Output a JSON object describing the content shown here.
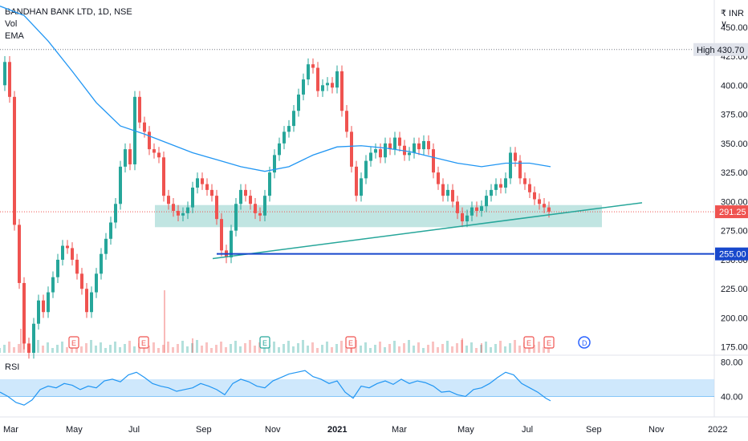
{
  "header": {
    "symbol": "BANDHAN BANK LTD, 1D, NSE",
    "indicators": [
      "Vol",
      "EMA"
    ]
  },
  "currency_label": "₹ INR ∨",
  "rsi_label": "RSI",
  "chart_data": {
    "type": "line",
    "title": "BANDHAN BANK LTD, 1D, NSE",
    "price_axis": {
      "ticks": [
        450.0,
        425.0,
        400.0,
        375.0,
        350.0,
        325.0,
        300.0,
        275.0,
        250.0,
        225.0,
        200.0,
        175.0
      ],
      "range": [
        170,
        465
      ]
    },
    "time_axis": {
      "labels": [
        "Mar",
        "May",
        "Jul",
        "Sep",
        "Nov",
        "2021",
        "Mar",
        "May",
        "Jul",
        "Sep",
        "Nov",
        "2022"
      ]
    },
    "price_series": {
      "name": "Close",
      "color_up": "#26a69a",
      "color_down": "#ef5350",
      "points": [
        [
          0,
          400
        ],
        [
          6,
          420
        ],
        [
          12,
          390
        ],
        [
          18,
          280
        ],
        [
          24,
          230
        ],
        [
          30,
          178
        ],
        [
          36,
          170
        ],
        [
          42,
          195
        ],
        [
          48,
          215
        ],
        [
          54,
          205
        ],
        [
          60,
          222
        ],
        [
          66,
          235
        ],
        [
          72,
          250
        ],
        [
          78,
          262
        ],
        [
          84,
          260
        ],
        [
          90,
          250
        ],
        [
          96,
          238
        ],
        [
          102,
          225
        ],
        [
          108,
          205
        ],
        [
          114,
          222
        ],
        [
          120,
          238
        ],
        [
          126,
          255
        ],
        [
          132,
          268
        ],
        [
          138,
          282
        ],
        [
          144,
          298
        ],
        [
          150,
          330
        ],
        [
          156,
          345
        ],
        [
          162,
          332
        ],
        [
          168,
          390
        ],
        [
          174,
          368
        ],
        [
          180,
          360
        ],
        [
          186,
          345
        ],
        [
          192,
          342
        ],
        [
          198,
          338
        ],
        [
          204,
          305
        ],
        [
          210,
          298
        ],
        [
          216,
          292
        ],
        [
          222,
          288
        ],
        [
          228,
          290
        ],
        [
          234,
          295
        ],
        [
          240,
          312
        ],
        [
          246,
          320
        ],
        [
          252,
          315
        ],
        [
          258,
          310
        ],
        [
          264,
          305
        ],
        [
          270,
          285
        ],
        [
          276,
          258
        ],
        [
          282,
          252
        ],
        [
          288,
          275
        ],
        [
          294,
          298
        ],
        [
          300,
          310
        ],
        [
          306,
          305
        ],
        [
          312,
          298
        ],
        [
          318,
          290
        ],
        [
          324,
          288
        ],
        [
          330,
          305
        ],
        [
          336,
          325
        ],
        [
          342,
          340
        ],
        [
          348,
          350
        ],
        [
          354,
          360
        ],
        [
          360,
          365
        ],
        [
          366,
          378
        ],
        [
          372,
          392
        ],
        [
          378,
          405
        ],
        [
          384,
          418
        ],
        [
          390,
          415
        ],
        [
          396,
          395
        ],
        [
          402,
          400
        ],
        [
          408,
          402
        ],
        [
          414,
          398
        ],
        [
          420,
          412
        ],
        [
          426,
          378
        ],
        [
          432,
          360
        ],
        [
          438,
          330
        ],
        [
          444,
          305
        ],
        [
          450,
          320
        ],
        [
          456,
          335
        ],
        [
          462,
          342
        ],
        [
          468,
          345
        ],
        [
          474,
          338
        ],
        [
          480,
          350
        ],
        [
          486,
          345
        ],
        [
          492,
          355
        ],
        [
          498,
          348
        ],
        [
          504,
          340
        ],
        [
          510,
          342
        ],
        [
          516,
          350
        ],
        [
          522,
          345
        ],
        [
          528,
          352
        ],
        [
          534,
          345
        ],
        [
          540,
          325
        ],
        [
          546,
          315
        ],
        [
          552,
          305
        ],
        [
          558,
          310
        ],
        [
          564,
          300
        ],
        [
          570,
          290
        ],
        [
          576,
          283
        ],
        [
          582,
          288
        ],
        [
          588,
          295
        ],
        [
          594,
          292
        ],
        [
          600,
          296
        ],
        [
          606,
          305
        ],
        [
          612,
          310
        ],
        [
          618,
          315
        ],
        [
          624,
          312
        ],
        [
          630,
          320
        ],
        [
          636,
          342
        ],
        [
          642,
          335
        ],
        [
          648,
          320
        ],
        [
          654,
          315
        ],
        [
          660,
          308
        ],
        [
          666,
          302
        ],
        [
          672,
          298
        ],
        [
          678,
          295
        ],
        [
          684,
          291.25
        ]
      ]
    },
    "ema_series": {
      "name": "EMA",
      "color": "#2196f3",
      "points": [
        [
          0,
          468
        ],
        [
          30,
          460
        ],
        [
          60,
          438
        ],
        [
          90,
          412
        ],
        [
          120,
          385
        ],
        [
          150,
          365
        ],
        [
          180,
          358
        ],
        [
          210,
          350
        ],
        [
          240,
          342
        ],
        [
          270,
          336
        ],
        [
          300,
          330
        ],
        [
          330,
          326
        ],
        [
          360,
          330
        ],
        [
          390,
          340
        ],
        [
          420,
          347
        ],
        [
          450,
          348
        ],
        [
          480,
          346
        ],
        [
          510,
          343
        ],
        [
          540,
          338
        ],
        [
          570,
          333
        ],
        [
          600,
          330
        ],
        [
          630,
          333
        ],
        [
          660,
          333
        ],
        [
          686,
          330
        ]
      ]
    },
    "volume": {
      "name": "Vol",
      "up_color": "#26a69a",
      "down_color": "#ef5350",
      "spikes": [
        [
          26,
          195
        ],
        [
          205,
          235
        ],
        [
          240,
          185
        ],
        [
          438,
          180
        ],
        [
          576,
          185
        ],
        [
          600,
          180
        ]
      ]
    },
    "support_zone": {
      "low": 278,
      "high": 297,
      "color": "#b2dfdb"
    },
    "trendline": {
      "from": [
        265,
        251
      ],
      "to": [
        800,
        299
      ],
      "color": "#26a69a"
    },
    "horizontal_line": {
      "value": 255.0,
      "color": "#1848cc"
    },
    "rsi": {
      "ticks": [
        80.0,
        40.0
      ],
      "band": [
        40,
        60
      ],
      "range": [
        20,
        85
      ],
      "color": "#2196f3",
      "points": [
        [
          0,
          45
        ],
        [
          10,
          40
        ],
        [
          20,
          33
        ],
        [
          30,
          30
        ],
        [
          40,
          36
        ],
        [
          50,
          48
        ],
        [
          60,
          52
        ],
        [
          70,
          50
        ],
        [
          80,
          55
        ],
        [
          90,
          53
        ],
        [
          100,
          48
        ],
        [
          110,
          52
        ],
        [
          120,
          50
        ],
        [
          130,
          58
        ],
        [
          140,
          60
        ],
        [
          150,
          57
        ],
        [
          160,
          65
        ],
        [
          170,
          68
        ],
        [
          180,
          62
        ],
        [
          190,
          55
        ],
        [
          200,
          52
        ],
        [
          210,
          50
        ],
        [
          220,
          46
        ],
        [
          230,
          48
        ],
        [
          240,
          50
        ],
        [
          250,
          55
        ],
        [
          260,
          52
        ],
        [
          270,
          48
        ],
        [
          280,
          42
        ],
        [
          290,
          55
        ],
        [
          300,
          60
        ],
        [
          310,
          57
        ],
        [
          320,
          52
        ],
        [
          330,
          50
        ],
        [
          340,
          58
        ],
        [
          350,
          62
        ],
        [
          360,
          66
        ],
        [
          370,
          68
        ],
        [
          380,
          70
        ],
        [
          390,
          63
        ],
        [
          400,
          60
        ],
        [
          410,
          55
        ],
        [
          420,
          58
        ],
        [
          430,
          45
        ],
        [
          440,
          38
        ],
        [
          450,
          52
        ],
        [
          460,
          50
        ],
        [
          470,
          55
        ],
        [
          480,
          58
        ],
        [
          490,
          54
        ],
        [
          500,
          60
        ],
        [
          510,
          55
        ],
        [
          520,
          58
        ],
        [
          530,
          56
        ],
        [
          540,
          52
        ],
        [
          550,
          45
        ],
        [
          560,
          46
        ],
        [
          570,
          42
        ],
        [
          580,
          40
        ],
        [
          590,
          48
        ],
        [
          600,
          50
        ],
        [
          610,
          55
        ],
        [
          620,
          62
        ],
        [
          630,
          68
        ],
        [
          640,
          65
        ],
        [
          650,
          55
        ],
        [
          660,
          50
        ],
        [
          670,
          45
        ],
        [
          680,
          38
        ],
        [
          686,
          35
        ]
      ]
    },
    "price_labels": {
      "high_label": "High",
      "high_value": "430.70",
      "last_value": "291.25",
      "line_value": "255.00"
    },
    "event_markers": [
      "E",
      "E",
      "E",
      "E",
      "E",
      "E",
      "D",
      "E"
    ]
  }
}
